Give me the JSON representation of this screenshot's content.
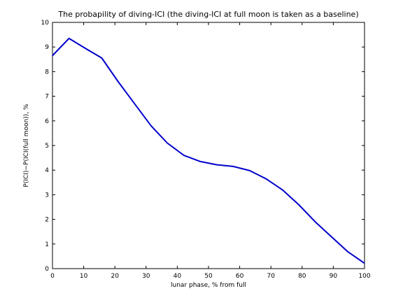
{
  "chart_data": {
    "type": "line",
    "title": "The probapility of diving-ICI (the diving-ICI at full moon is taken as a baseline)",
    "xlabel": "lunar phase, % from full",
    "ylabel": "P(ICI)−P(ICI(full moon)), %",
    "xlim": [
      0,
      100
    ],
    "ylim": [
      0,
      10
    ],
    "xticks": [
      "0",
      "10",
      "20",
      "30",
      "40",
      "50",
      "60",
      "70",
      "80",
      "90",
      "100"
    ],
    "yticks": [
      "0",
      "1",
      "2",
      "3",
      "4",
      "5",
      "6",
      "7",
      "8",
      "9",
      "10"
    ],
    "grid": false,
    "series": [
      {
        "color": "#0000cc",
        "x": [
          0,
          5.3,
          10.5,
          15.8,
          21,
          26.3,
          31.6,
          36.8,
          42.1,
          47.4,
          52.6,
          57.9,
          63.2,
          68.4,
          73.7,
          78.9,
          84.2,
          89.5,
          94.7,
          100
        ],
        "y": [
          8.65,
          9.35,
          8.95,
          8.55,
          7.6,
          6.7,
          5.8,
          5.1,
          4.6,
          4.35,
          4.22,
          4.15,
          3.98,
          3.65,
          3.2,
          2.6,
          1.9,
          1.28,
          0.68,
          0.22
        ]
      }
    ]
  }
}
